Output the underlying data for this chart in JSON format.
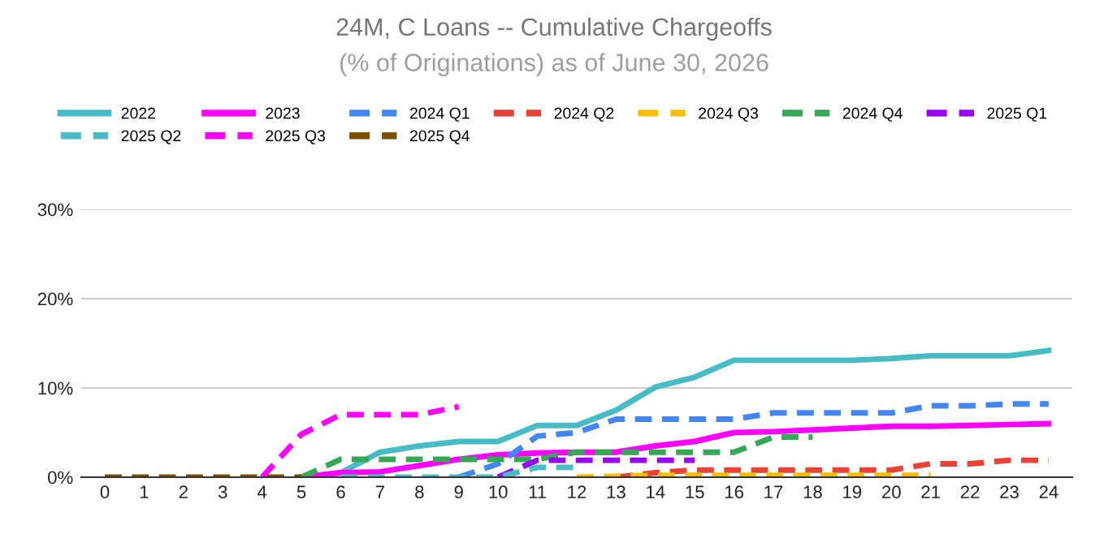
{
  "chart_data": {
    "type": "line",
    "title": "24M, C Loans -- Cumulative Chargeoffs",
    "subtitle": "(% of Originations) as of June 30, 2026",
    "categories": [
      "0",
      "1",
      "2",
      "3",
      "4",
      "5",
      "6",
      "7",
      "8",
      "9",
      "10",
      "11",
      "12",
      "13",
      "14",
      "15",
      "16",
      "17",
      "18",
      "19",
      "20",
      "21",
      "22",
      "23",
      "24"
    ],
    "ylim": [
      0,
      30
    ],
    "yticks": [
      {
        "value": 0,
        "label": "0%"
      },
      {
        "value": 10,
        "label": "10%"
      },
      {
        "value": 20,
        "label": "20%"
      },
      {
        "value": 30,
        "label": "30%"
      }
    ],
    "grid": "y",
    "legend": "top",
    "series": [
      {
        "name": "2022",
        "color": "#46bdc6",
        "line_style": "solid",
        "values": [
          null,
          null,
          null,
          null,
          null,
          0,
          0.5,
          2.8,
          3.5,
          4.0,
          4.0,
          5.8,
          5.8,
          7.5,
          10.1,
          11.2,
          13.1,
          13.1,
          13.1,
          13.1,
          13.3,
          13.6,
          13.6,
          13.6,
          14.2
        ]
      },
      {
        "name": "2023",
        "color": "#ff00ff",
        "line_style": "solid",
        "values": [
          null,
          null,
          null,
          null,
          null,
          0,
          0.5,
          0.6,
          1.3,
          2.0,
          2.5,
          2.7,
          2.8,
          2.8,
          3.5,
          4.0,
          5.0,
          5.1,
          5.3,
          5.5,
          5.7,
          5.7,
          5.8,
          5.9,
          6.0
        ]
      },
      {
        "name": "2024 Q1",
        "color": "#4285f4",
        "line_style": "dashed",
        "values": [
          null,
          null,
          null,
          null,
          null,
          null,
          null,
          null,
          null,
          0,
          1.5,
          4.6,
          5.0,
          6.5,
          6.5,
          6.5,
          6.5,
          7.2,
          7.2,
          7.2,
          7.2,
          8.0,
          8.0,
          8.2,
          8.2
        ]
      },
      {
        "name": "2024 Q2",
        "color": "#ea4335",
        "line_style": "dashed",
        "values": [
          null,
          null,
          null,
          null,
          null,
          null,
          null,
          null,
          null,
          null,
          null,
          null,
          null,
          0,
          0.5,
          0.8,
          0.8,
          0.8,
          0.8,
          0.8,
          0.8,
          1.5,
          1.5,
          1.9,
          1.9
        ]
      },
      {
        "name": "2024 Q3",
        "color": "#fbbc04",
        "line_style": "dashed",
        "values": [
          null,
          null,
          null,
          null,
          null,
          null,
          null,
          null,
          null,
          null,
          null,
          null,
          0,
          0.1,
          0.2,
          0.2,
          0.2,
          0.2,
          0.2,
          0.2,
          0.2,
          0.2,
          null,
          null,
          null
        ]
      },
      {
        "name": "2024 Q4",
        "color": "#34a853",
        "line_style": "dashed",
        "values": [
          null,
          null,
          null,
          null,
          null,
          0,
          2.0,
          2.0,
          2.0,
          2.0,
          2.0,
          2.0,
          2.8,
          2.8,
          2.8,
          2.8,
          2.8,
          4.5,
          4.5,
          null,
          null,
          null,
          null,
          null,
          null
        ]
      },
      {
        "name": "2025 Q1",
        "color": "#9900ff",
        "line_style": "dashed",
        "values": [
          null,
          null,
          null,
          null,
          null,
          null,
          null,
          null,
          null,
          null,
          0,
          1.9,
          1.9,
          1.9,
          1.9,
          1.9,
          null,
          null,
          null,
          null,
          null,
          null,
          null,
          null,
          null
        ]
      },
      {
        "name": "2025 Q2",
        "color": "#46bdc6",
        "line_style": "dashed",
        "values": [
          null,
          null,
          null,
          null,
          null,
          null,
          0,
          0,
          0,
          0,
          0,
          1.1,
          1.1,
          null,
          null,
          null,
          null,
          null,
          null,
          null,
          null,
          null,
          null,
          null,
          null
        ]
      },
      {
        "name": "2025 Q3",
        "color": "#ff00ff",
        "line_style": "dashed",
        "values": [
          null,
          null,
          null,
          null,
          0,
          4.8,
          7.0,
          7.0,
          7.0,
          7.9,
          null,
          null,
          null,
          null,
          null,
          null,
          null,
          null,
          null,
          null,
          null,
          null,
          null,
          null,
          null
        ]
      },
      {
        "name": "2025 Q4",
        "color": "#7f4f00",
        "line_style": "dashed",
        "values": [
          0,
          0,
          0,
          0,
          0,
          0,
          null,
          null,
          null,
          null,
          null,
          null,
          null,
          null,
          null,
          null,
          null,
          null,
          null,
          null,
          null,
          null,
          null,
          null,
          null
        ]
      }
    ]
  }
}
